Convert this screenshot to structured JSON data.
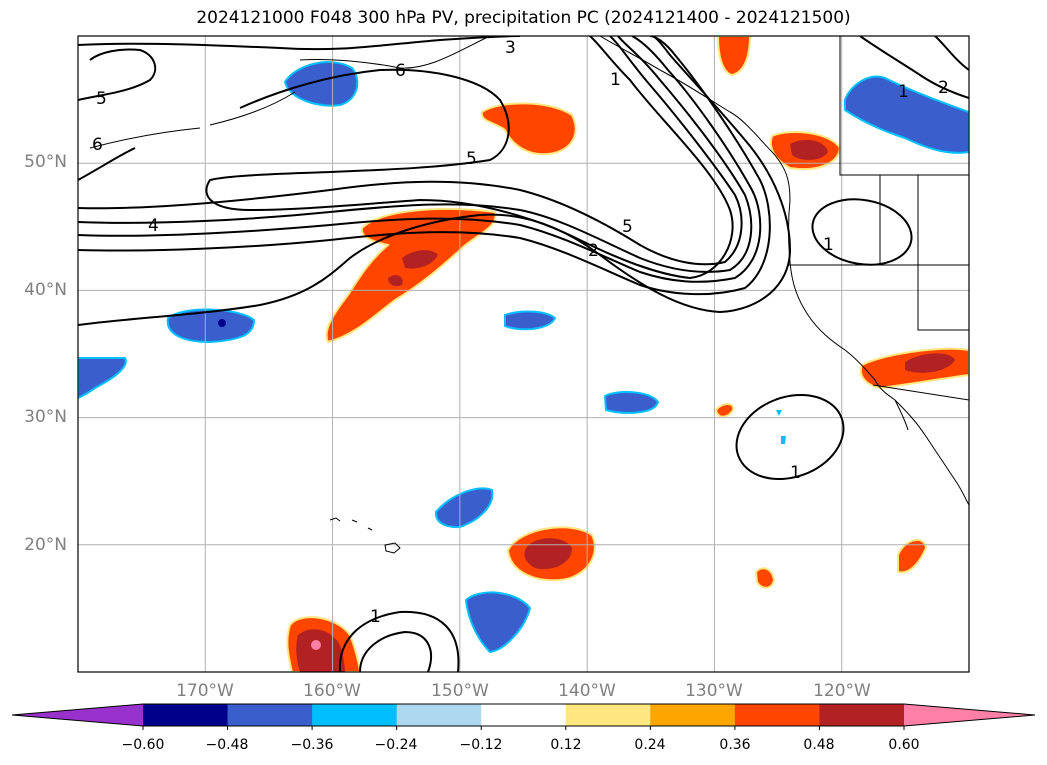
{
  "title": "2024121000 F048 300 hPa PV, precipitation PC (2024121400 - 2024121500)",
  "chart_data": {
    "type": "contour_map",
    "title": "2024121000 F048 300 hPa PV, precipitation PC (2024121400 - 2024121500)",
    "lon_range": [
      -180,
      -110
    ],
    "lat_range": [
      10,
      60
    ],
    "grid": true,
    "lon_ticks": [
      "170°W",
      "160°W",
      "150°W",
      "140°W",
      "130°W",
      "120°W"
    ],
    "lat_ticks": [
      "50°N",
      "40°N",
      "30°N",
      "20°N"
    ],
    "pv_contour_labels": [
      "6",
      "5",
      "3",
      "1",
      "5",
      "4",
      "5",
      "2",
      "1",
      "1",
      "1",
      "1",
      "2",
      "6"
    ],
    "colorbar": {
      "ticks": [
        "−0.60",
        "−0.48",
        "−0.36",
        "−0.24",
        "−0.12",
        "0.12",
        "0.24",
        "0.36",
        "0.48",
        "0.60"
      ],
      "colors": [
        "#9932cc",
        "#00008b",
        "#3a5fcd",
        "#00bfff",
        "#add8f0",
        "#ffffff",
        "#ffe680",
        "#ffa500",
        "#ff4500",
        "#b22222",
        "#ff80a6"
      ],
      "extend": "both"
    }
  },
  "colors": {
    "gridline": "#b0b0b0",
    "ticklabel": "#808080",
    "contour": "#000000"
  }
}
